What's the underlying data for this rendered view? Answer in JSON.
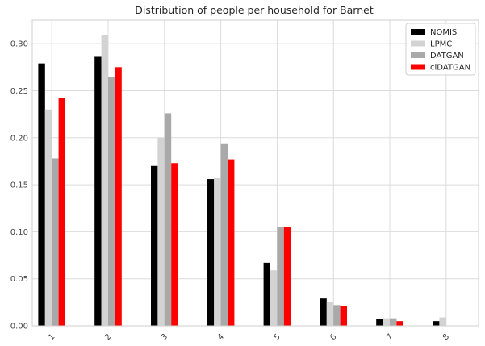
{
  "chart_data": {
    "type": "bar",
    "title": "Distribution of people per household for Barnet",
    "xlabel": "",
    "ylabel": "",
    "categories": [
      "1",
      "2",
      "3",
      "4",
      "5",
      "6",
      "7",
      "8"
    ],
    "ylim": [
      0,
      0.325
    ],
    "yticks": [
      "0.00",
      "0.05",
      "0.10",
      "0.15",
      "0.20",
      "0.25",
      "0.30"
    ],
    "grid": true,
    "legend_position": "top-right",
    "series": [
      {
        "name": "NOMIS",
        "color": "#000000",
        "values": [
          0.279,
          0.286,
          0.17,
          0.156,
          0.067,
          0.029,
          0.007,
          0.005
        ]
      },
      {
        "name": "LPMC",
        "color": "#d3d3d3",
        "values": [
          0.23,
          0.309,
          0.2,
          0.157,
          0.059,
          0.025,
          0.008,
          0.009
        ]
      },
      {
        "name": "DATGAN",
        "color": "#a9a9a9",
        "values": [
          0.178,
          0.265,
          0.226,
          0.194,
          0.105,
          0.022,
          0.008,
          0.0
        ]
      },
      {
        "name": "ciDATGAN",
        "color": "#ff0000",
        "values": [
          0.242,
          0.275,
          0.173,
          0.177,
          0.105,
          0.021,
          0.005,
          0.0
        ]
      }
    ]
  }
}
